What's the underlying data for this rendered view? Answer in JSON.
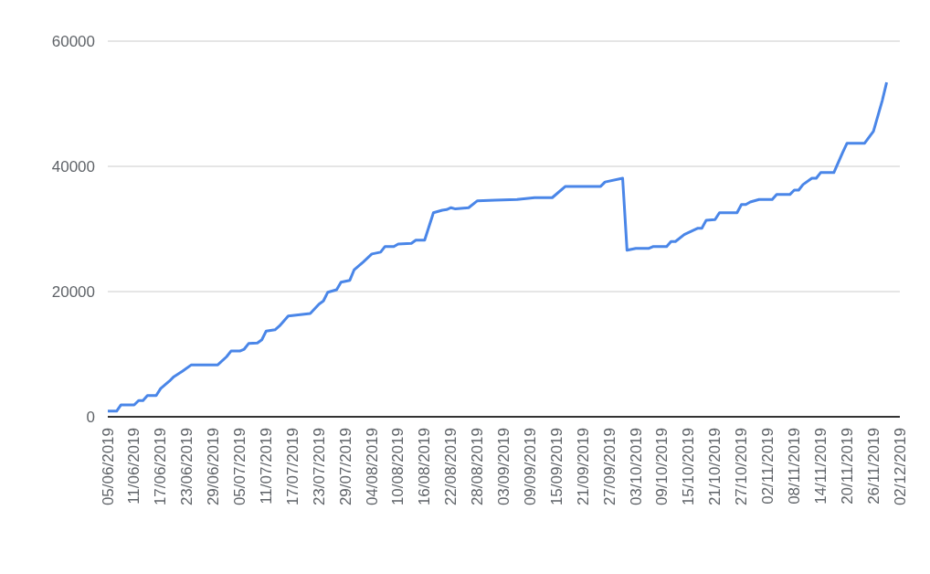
{
  "chart_data": {
    "type": "line",
    "color": "#4a86e8",
    "marker": "none",
    "line_style": "solid",
    "grid": "y",
    "x": [
      "2019-06-05",
      "2019-06-07",
      "2019-06-08",
      "2019-06-11",
      "2019-06-12",
      "2019-06-13",
      "2019-06-14",
      "2019-06-16",
      "2019-06-17",
      "2019-06-19",
      "2019-06-20",
      "2019-06-22",
      "2019-06-24",
      "2019-06-30",
      "2019-07-02",
      "2019-07-03",
      "2019-07-05",
      "2019-07-06",
      "2019-07-07",
      "2019-07-09",
      "2019-07-10",
      "2019-07-11",
      "2019-07-13",
      "2019-07-14",
      "2019-07-16",
      "2019-07-21",
      "2019-07-23",
      "2019-07-24",
      "2019-07-25",
      "2019-07-27",
      "2019-07-28",
      "2019-07-30",
      "2019-07-31",
      "2019-08-02",
      "2019-08-04",
      "2019-08-06",
      "2019-08-07",
      "2019-08-09",
      "2019-08-10",
      "2019-08-13",
      "2019-08-14",
      "2019-08-16",
      "2019-08-18",
      "2019-08-20",
      "2019-08-21",
      "2019-08-22",
      "2019-08-23",
      "2019-08-26",
      "2019-08-28",
      "2019-09-01",
      "2019-09-06",
      "2019-09-10",
      "2019-09-14",
      "2019-09-17",
      "2019-09-25",
      "2019-09-26",
      "2019-09-30",
      "2019-10-01",
      "2019-10-03",
      "2019-10-06",
      "2019-10-07",
      "2019-10-10",
      "2019-10-11",
      "2019-10-12",
      "2019-10-14",
      "2019-10-17",
      "2019-10-18",
      "2019-10-19",
      "2019-10-21",
      "2019-10-22",
      "2019-10-26",
      "2019-10-27",
      "2019-10-28",
      "2019-10-29",
      "2019-10-31",
      "2019-11-03",
      "2019-11-04",
      "2019-11-07",
      "2019-11-08",
      "2019-11-09",
      "2019-11-10",
      "2019-11-12",
      "2019-11-13",
      "2019-11-14",
      "2019-11-17",
      "2019-11-19",
      "2019-11-20",
      "2019-11-24",
      "2019-11-26",
      "2019-11-28",
      "2019-11-29"
    ],
    "values": [
      900,
      900,
      1900,
      1900,
      2600,
      2600,
      3400,
      3400,
      4500,
      5700,
      6400,
      7300,
      8300,
      8300,
      9600,
      10500,
      10500,
      10800,
      11700,
      11800,
      12300,
      13700,
      13900,
      14500,
      16100,
      16500,
      18000,
      18500,
      19900,
      20300,
      21500,
      21800,
      23500,
      24700,
      26000,
      26300,
      27200,
      27200,
      27600,
      27700,
      28200,
      28200,
      32600,
      33000,
      33100,
      33400,
      33200,
      33400,
      34500,
      34600,
      34700,
      35000,
      35000,
      36800,
      36800,
      37500,
      38100,
      26600,
      26900,
      26900,
      27200,
      27200,
      28000,
      28000,
      29100,
      30100,
      30100,
      31400,
      31500,
      32600,
      32600,
      33900,
      33900,
      34300,
      34700,
      34700,
      35500,
      35500,
      36200,
      36200,
      37100,
      38100,
      38100,
      39000,
      39000,
      42200,
      43700,
      43700,
      45600,
      50500,
      53400
    ],
    "xlim": [
      "2019-06-05",
      "2019-12-02"
    ],
    "xticks": [
      {
        "value": "2019-06-05",
        "label": "05/06/2019"
      },
      {
        "value": "2019-06-11",
        "label": "11/06/2019"
      },
      {
        "value": "2019-06-17",
        "label": "17/06/2019"
      },
      {
        "value": "2019-06-23",
        "label": "23/06/2019"
      },
      {
        "value": "2019-06-29",
        "label": "29/06/2019"
      },
      {
        "value": "2019-07-05",
        "label": "05/07/2019"
      },
      {
        "value": "2019-07-11",
        "label": "11/07/2019"
      },
      {
        "value": "2019-07-17",
        "label": "17/07/2019"
      },
      {
        "value": "2019-07-23",
        "label": "23/07/2019"
      },
      {
        "value": "2019-07-29",
        "label": "29/07/2019"
      },
      {
        "value": "2019-08-04",
        "label": "04/08/2019"
      },
      {
        "value": "2019-08-10",
        "label": "10/08/2019"
      },
      {
        "value": "2019-08-16",
        "label": "16/08/2019"
      },
      {
        "value": "2019-08-22",
        "label": "22/08/2019"
      },
      {
        "value": "2019-08-28",
        "label": "28/08/2019"
      },
      {
        "value": "2019-09-03",
        "label": "03/09/2019"
      },
      {
        "value": "2019-09-09",
        "label": "09/09/2019"
      },
      {
        "value": "2019-09-15",
        "label": "15/09/2019"
      },
      {
        "value": "2019-09-21",
        "label": "21/09/2019"
      },
      {
        "value": "2019-09-27",
        "label": "27/09/2019"
      },
      {
        "value": "2019-10-03",
        "label": "03/10/2019"
      },
      {
        "value": "2019-10-09",
        "label": "09/10/2019"
      },
      {
        "value": "2019-10-15",
        "label": "15/10/2019"
      },
      {
        "value": "2019-10-21",
        "label": "21/10/2019"
      },
      {
        "value": "2019-10-27",
        "label": "27/10/2019"
      },
      {
        "value": "2019-11-02",
        "label": "02/11/2019"
      },
      {
        "value": "2019-11-08",
        "label": "08/11/2019"
      },
      {
        "value": "2019-11-14",
        "label": "14/11/2019"
      },
      {
        "value": "2019-11-20",
        "label": "20/11/2019"
      },
      {
        "value": "2019-11-26",
        "label": "26/11/2019"
      },
      {
        "value": "2019-12-02",
        "label": "02/12/2019"
      }
    ],
    "ylim": [
      0,
      60000
    ],
    "yticks": [
      0,
      20000,
      40000,
      60000
    ]
  }
}
